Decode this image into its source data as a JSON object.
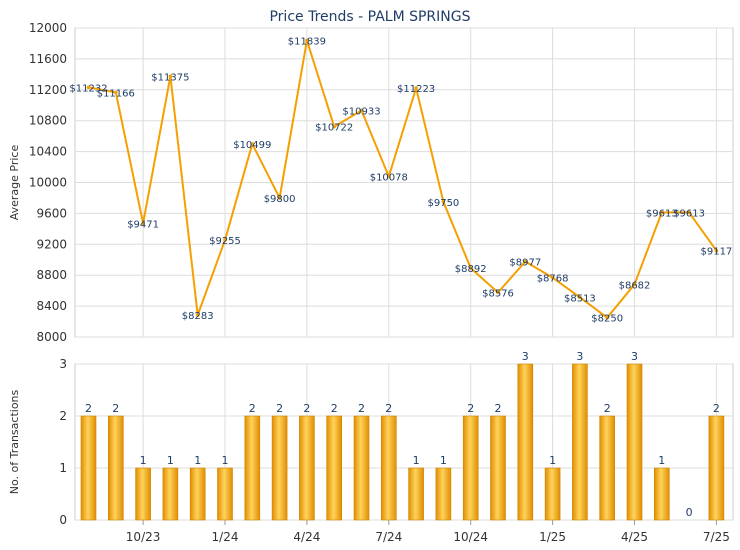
{
  "chart_data": [
    {
      "type": "line",
      "title": "Price Trends - PALM SPRINGS",
      "ylabel": "Average Price",
      "ylim": [
        8000,
        12000
      ],
      "yticks": [
        8000,
        8400,
        8800,
        9200,
        9600,
        10000,
        10400,
        10800,
        11200,
        11600,
        12000
      ],
      "color": "#f5a000",
      "grid": true,
      "x": [
        "2023-08",
        "2023-09",
        "2023-10",
        "2023-11",
        "2023-12",
        "2024-01",
        "2024-02",
        "2024-03",
        "2024-04",
        "2024-05",
        "2024-06",
        "2024-07",
        "2024-08",
        "2024-09",
        "2024-10",
        "2024-11",
        "2024-12",
        "2025-01",
        "2025-02",
        "2025-03",
        "2025-04",
        "2025-05",
        "2025-06",
        "2025-07"
      ],
      "values": [
        11232,
        11166,
        9471,
        11375,
        8283,
        9255,
        10499,
        9800,
        11839,
        10722,
        10933,
        10078,
        11223,
        9750,
        8892,
        8576,
        8977,
        8768,
        8513,
        8250,
        8682,
        9613,
        9613,
        9117
      ],
      "labels": [
        "$11232",
        "$11166",
        "$9471",
        "$11375",
        "$8283",
        "$9255",
        "$10499",
        "$9800",
        "$11839",
        "$10722",
        "$10933",
        "$10078",
        "$11223",
        "$9750",
        "$8892",
        "$8576",
        "$8977",
        "$8768",
        "$8513",
        "$8250",
        "$8682",
        "$9613",
        "$9613",
        "$9117"
      ]
    },
    {
      "type": "bar",
      "ylabel": "No. of Transactions",
      "ylim": [
        0,
        3
      ],
      "yticks": [
        0,
        1,
        2,
        3
      ],
      "color": "#f5a000",
      "grid": true,
      "x": [
        "2023-08",
        "2023-09",
        "2023-10",
        "2023-11",
        "2023-12",
        "2024-01",
        "2024-02",
        "2024-03",
        "2024-04",
        "2024-05",
        "2024-06",
        "2024-07",
        "2024-08",
        "2024-09",
        "2024-10",
        "2024-11",
        "2024-12",
        "2025-01",
        "2025-02",
        "2025-03",
        "2025-04",
        "2025-05",
        "2025-06",
        "2025-07"
      ],
      "values": [
        2,
        2,
        1,
        1,
        1,
        1,
        2,
        2,
        2,
        2,
        2,
        2,
        1,
        1,
        2,
        2,
        3,
        1,
        3,
        2,
        3,
        1,
        0,
        2
      ],
      "tick_labels": [
        {
          "label": "10/23",
          "index": 2
        },
        {
          "label": "1/24",
          "index": 5
        },
        {
          "label": "4/24",
          "index": 8
        },
        {
          "label": "7/24",
          "index": 11
        },
        {
          "label": "10/24",
          "index": 14
        },
        {
          "label": "1/25",
          "index": 17
        },
        {
          "label": "4/25",
          "index": 20
        },
        {
          "label": "7/25",
          "index": 23
        }
      ]
    }
  ]
}
